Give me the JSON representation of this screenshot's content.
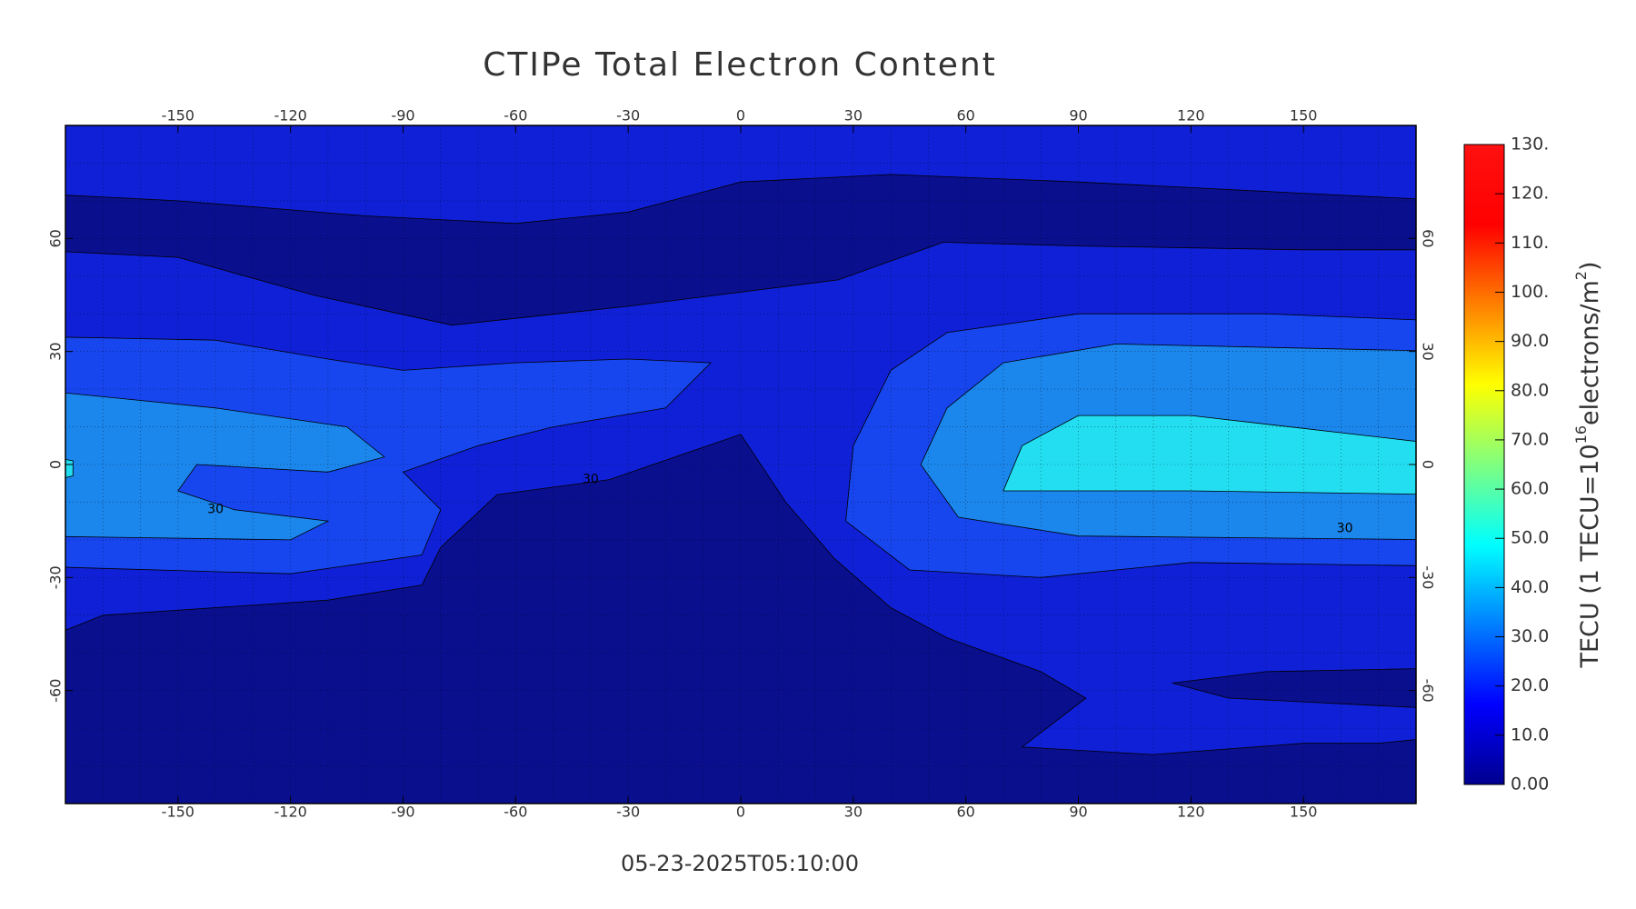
{
  "chart_data": {
    "type": "contour_map",
    "title": "CTIPe Total Electron Content",
    "timestamp": "05-23-2025T05:10:00",
    "xlim": [
      -180,
      180
    ],
    "ylim": [
      -90,
      90
    ],
    "xticks": [
      -150,
      -120,
      -90,
      -60,
      -30,
      0,
      30,
      60,
      90,
      120,
      150
    ],
    "yticks": [
      -60,
      -30,
      0,
      30,
      60
    ],
    "grid": true,
    "levels": [
      0,
      10,
      20,
      30,
      40
    ],
    "level_colors": [
      "#0a0f8e",
      "#1020d6",
      "#1746ef",
      "#1b86ec",
      "#22def0"
    ],
    "contour_labels": [
      "30",
      "30",
      "30"
    ],
    "colorbar": {
      "lim": [
        0,
        130
      ],
      "ticks": [
        {
          "value": 0,
          "label": "0.00"
        },
        {
          "value": 10,
          "label": "10.0"
        },
        {
          "value": 20,
          "label": "20.0"
        },
        {
          "value": 30,
          "label": "30.0"
        },
        {
          "value": 40,
          "label": "40.0"
        },
        {
          "value": 50,
          "label": "50.0"
        },
        {
          "value": 60,
          "label": "60.0"
        },
        {
          "value": 70,
          "label": "70.0"
        },
        {
          "value": 80,
          "label": "80.0"
        },
        {
          "value": 90,
          "label": "90.0"
        },
        {
          "value": 100,
          "label": "100."
        },
        {
          "value": 110,
          "label": "110."
        },
        {
          "value": 120,
          "label": "120."
        },
        {
          "value": 130,
          "label": "130."
        }
      ],
      "label_parts": [
        "TECU (1 TECU=10",
        "16",
        "electrons/m",
        "2",
        ")"
      ]
    }
  }
}
